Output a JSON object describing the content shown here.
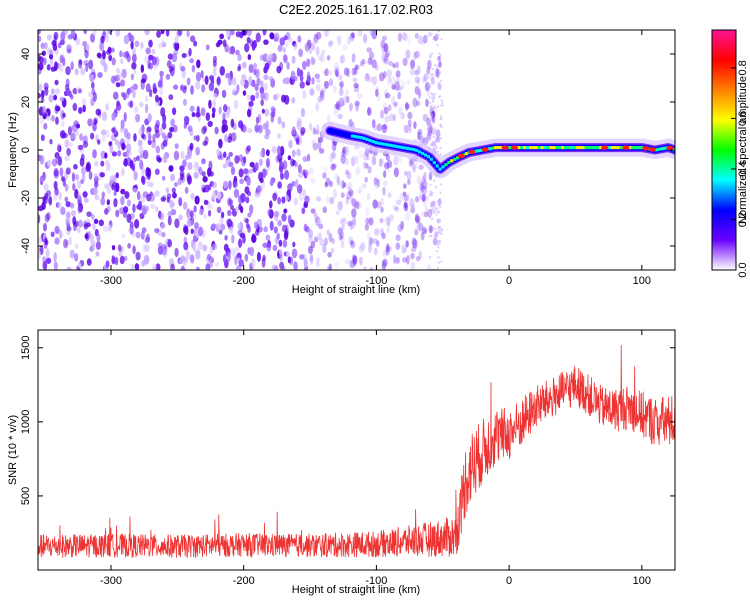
{
  "title": "C2E2.2025.161.17.02.R03",
  "chart_data": [
    {
      "type": "heatmap",
      "title": "C2E2.2025.161.17.02.R03",
      "xlabel": "Height of straight line (km)",
      "ylabel": "Frequency (Hz)",
      "xlim": [
        -355,
        125
      ],
      "ylim": [
        -50,
        50
      ],
      "x_ticks": [
        -300,
        -200,
        -100,
        0,
        100
      ],
      "y_ticks": [
        -40,
        -20,
        0,
        20,
        40
      ],
      "noise_region_x": [
        -355,
        -52
      ],
      "signal_track": {
        "x": [
          -135,
          -120,
          -110,
          -100,
          -90,
          -80,
          -70,
          -60,
          -52,
          -45,
          -38,
          -30,
          -20,
          -10,
          0,
          20,
          40,
          60,
          80,
          100,
          110,
          120,
          125
        ],
        "frequency_hz": [
          8,
          6,
          5,
          3,
          2,
          1,
          0,
          -3,
          -8,
          -5,
          -3,
          -1,
          0,
          1,
          1,
          1,
          1,
          1,
          1,
          1,
          0,
          1,
          0
        ]
      },
      "colorbar": {
        "label": "Normalized spectral amplitude",
        "range": [
          0,
          0.95
        ],
        "ticks": [
          0.0,
          0.2,
          0.4,
          0.6,
          0.8
        ],
        "tick_labels": [
          "0.0",
          "0.2",
          "0.4",
          "0.6",
          "0.8"
        ],
        "colormap": [
          "#ffffff",
          "#6a00ff",
          "#0000ff",
          "#00ffff",
          "#00ff00",
          "#ffff00",
          "#ff8000",
          "#ff0000",
          "#ff1493"
        ]
      },
      "grid": false
    },
    {
      "type": "line",
      "xlabel": "Height of straight line (km)",
      "ylabel": "SNR (10 * v/v)",
      "xlim": [
        -355,
        125
      ],
      "ylim": [
        0,
        1620
      ],
      "x_ticks": [
        -300,
        -200,
        -100,
        0,
        100
      ],
      "y_ticks": [
        500,
        1000,
        1500
      ],
      "color": "#ee3333",
      "grid": false,
      "series": [
        {
          "x": [
            -355,
            -300,
            -250,
            -200,
            -150,
            -100,
            -70,
            -50,
            -40,
            -33,
            -28,
            -20,
            -10,
            0,
            10,
            20,
            30,
            40,
            50,
            60,
            70,
            80,
            90,
            100,
            110,
            120,
            125
          ],
          "values": [
            160,
            165,
            160,
            170,
            165,
            175,
            200,
            215,
            230,
            600,
            700,
            800,
            900,
            920,
            1000,
            1100,
            1150,
            1200,
            1250,
            1180,
            1100,
            1080,
            1100,
            1050,
            1000,
            1000,
            1020
          ],
          "spread": [
            80,
            80,
            80,
            80,
            80,
            90,
            110,
            130,
            150,
            250,
            250,
            220,
            200,
            180,
            170,
            150,
            140,
            140,
            140,
            140,
            140,
            150,
            150,
            160,
            170,
            180,
            180
          ]
        }
      ]
    }
  ]
}
